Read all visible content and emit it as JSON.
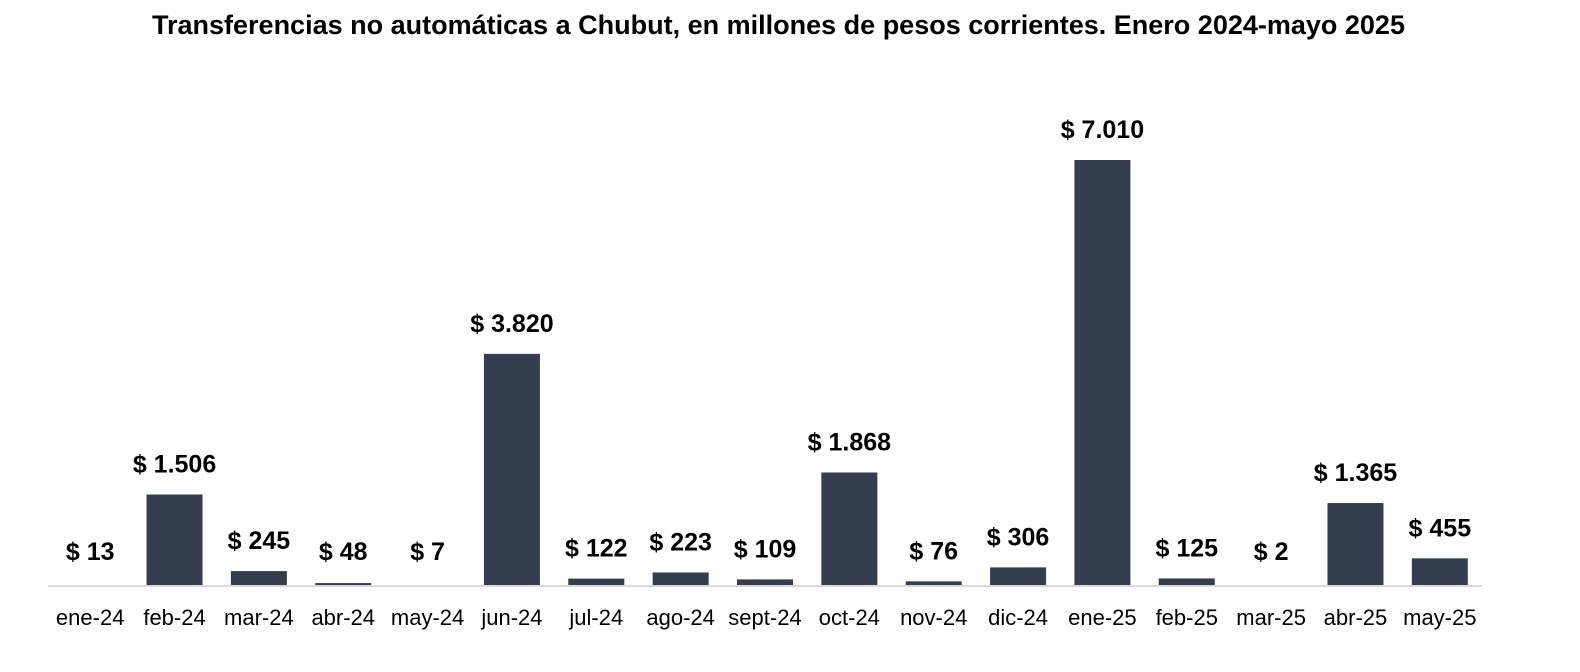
{
  "chart_data": {
    "type": "bar",
    "title": "Transferencias no automáticas a Chubut, en millones de pesos corrientes. Enero 2024-mayo 2025",
    "xlabel": "",
    "ylabel": "",
    "categories": [
      "ene-24",
      "feb-24",
      "mar-24",
      "abr-24",
      "may-24",
      "jun-24",
      "jul-24",
      "ago-24",
      "sept-24",
      "oct-24",
      "nov-24",
      "dic-24",
      "ene-25",
      "feb-25",
      "mar-25",
      "abr-25",
      "may-25"
    ],
    "values": [
      13,
      1506,
      245,
      48,
      7,
      3820,
      122,
      223,
      109,
      1868,
      76,
      306,
      7010,
      125,
      2,
      1365,
      455
    ],
    "data_labels": [
      "$ 13",
      "$ 1.506",
      "$ 245",
      "$ 48",
      "$ 7",
      "$ 3.820",
      "$ 122",
      "$ 223",
      "$ 109",
      "$ 1.868",
      "$ 76",
      "$ 306",
      "$ 7.010",
      "$ 125",
      "$ 2",
      "$ 1.365",
      "$ 455"
    ],
    "ylim": [
      0,
      7010
    ],
    "grid": false,
    "legend": "none",
    "bar_color": "#343d4e",
    "axis_color": "#d9d9d9"
  }
}
